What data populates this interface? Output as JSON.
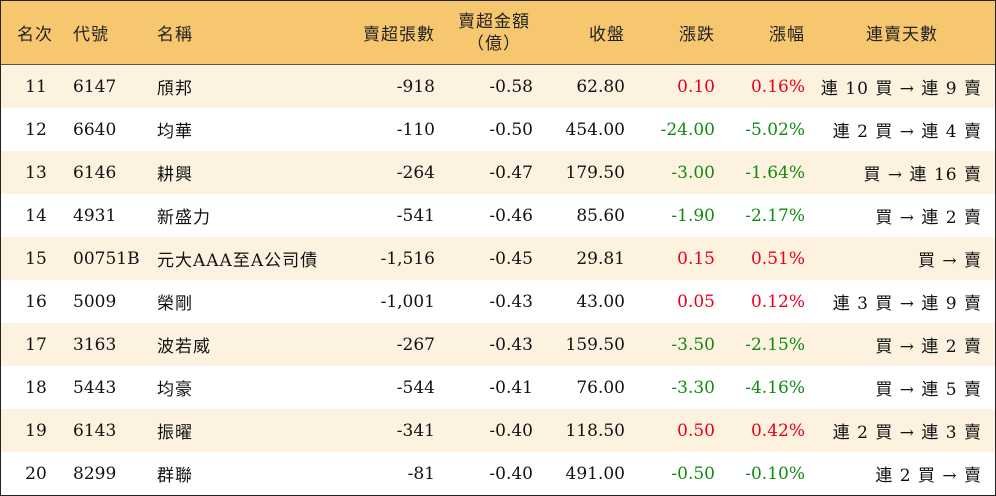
{
  "colors": {
    "header_bg": "#f6c76f",
    "row_alt_bg": "#fcf2df",
    "up": "#e8001c",
    "down": "#128a12"
  },
  "header": {
    "rank": "名次",
    "code": "代號",
    "name": "名稱",
    "sell_volume": "賣超張數",
    "sell_amount_line1": "賣超金額",
    "sell_amount_line2": "（億）",
    "close": "收盤",
    "change": "漲跌",
    "pct": "漲幅",
    "days": "連賣天數"
  },
  "rows": [
    {
      "rank": "11",
      "code": "6147",
      "name": "頎邦",
      "sell_volume": "-918",
      "sell_amount": "-0.58",
      "close": "62.80",
      "change": "0.10",
      "pct": "0.16%",
      "dir": "up",
      "days": "連 10 買 → 連 9 賣"
    },
    {
      "rank": "12",
      "code": "6640",
      "name": "均華",
      "sell_volume": "-110",
      "sell_amount": "-0.50",
      "close": "454.00",
      "change": "-24.00",
      "pct": "-5.02%",
      "dir": "down",
      "days": "連 2 買 → 連 4 賣"
    },
    {
      "rank": "13",
      "code": "6146",
      "name": "耕興",
      "sell_volume": "-264",
      "sell_amount": "-0.47",
      "close": "179.50",
      "change": "-3.00",
      "pct": "-1.64%",
      "dir": "down",
      "days": "買 → 連 16 賣"
    },
    {
      "rank": "14",
      "code": "4931",
      "name": "新盛力",
      "sell_volume": "-541",
      "sell_amount": "-0.46",
      "close": "85.60",
      "change": "-1.90",
      "pct": "-2.17%",
      "dir": "down",
      "days": "買 → 連 2 賣"
    },
    {
      "rank": "15",
      "code": "00751B",
      "name": "元大AAA至A公司債",
      "sell_volume": "-1,516",
      "sell_amount": "-0.45",
      "close": "29.81",
      "change": "0.15",
      "pct": "0.51%",
      "dir": "up",
      "days": "買 → 賣"
    },
    {
      "rank": "16",
      "code": "5009",
      "name": "榮剛",
      "sell_volume": "-1,001",
      "sell_amount": "-0.43",
      "close": "43.00",
      "change": "0.05",
      "pct": "0.12%",
      "dir": "up",
      "days": "連 3 買 → 連 9 賣"
    },
    {
      "rank": "17",
      "code": "3163",
      "name": "波若威",
      "sell_volume": "-267",
      "sell_amount": "-0.43",
      "close": "159.50",
      "change": "-3.50",
      "pct": "-2.15%",
      "dir": "down",
      "days": "買 → 連 2 賣"
    },
    {
      "rank": "18",
      "code": "5443",
      "name": "均豪",
      "sell_volume": "-544",
      "sell_amount": "-0.41",
      "close": "76.00",
      "change": "-3.30",
      "pct": "-4.16%",
      "dir": "down",
      "days": "買 → 連 5 賣"
    },
    {
      "rank": "19",
      "code": "6143",
      "name": "振曜",
      "sell_volume": "-341",
      "sell_amount": "-0.40",
      "close": "118.50",
      "change": "0.50",
      "pct": "0.42%",
      "dir": "up",
      "days": "連 2 買 → 連 3 賣"
    },
    {
      "rank": "20",
      "code": "8299",
      "name": "群聯",
      "sell_volume": "-81",
      "sell_amount": "-0.40",
      "close": "491.00",
      "change": "-0.50",
      "pct": "-0.10%",
      "dir": "down",
      "days": "連 2 買 → 賣"
    }
  ]
}
